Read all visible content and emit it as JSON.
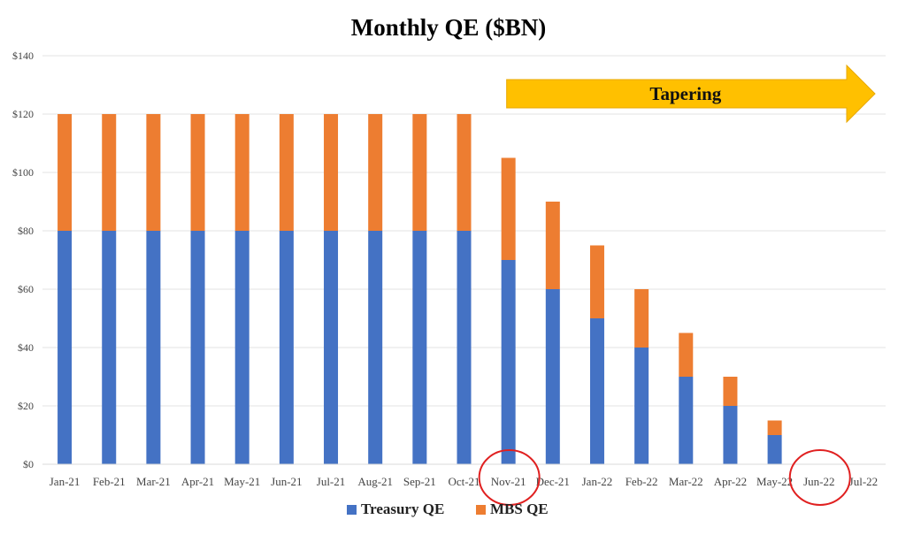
{
  "chart_data": {
    "type": "bar",
    "stacked": true,
    "title": "Monthly QE ($BN)",
    "categories": [
      "Jan-21",
      "Feb-21",
      "Mar-21",
      "Apr-21",
      "May-21",
      "Jun-21",
      "Jul-21",
      "Aug-21",
      "Sep-21",
      "Oct-21",
      "Nov-21",
      "Dec-21",
      "Jan-22",
      "Feb-22",
      "Mar-22",
      "Apr-22",
      "May-22",
      "Jun-22",
      "Jul-22"
    ],
    "series": [
      {
        "name": "Treasury QE",
        "color": "#4472C4",
        "values": [
          80,
          80,
          80,
          80,
          80,
          80,
          80,
          80,
          80,
          80,
          70,
          60,
          50,
          40,
          30,
          20,
          10,
          0,
          0
        ]
      },
      {
        "name": "MBS QE",
        "color": "#ED7D31",
        "values": [
          40,
          40,
          40,
          40,
          40,
          40,
          40,
          40,
          40,
          40,
          35,
          30,
          25,
          20,
          15,
          10,
          5,
          0,
          0
        ]
      }
    ],
    "ylim": [
      0,
      140
    ],
    "yticks": [
      0,
      20,
      40,
      60,
      80,
      100,
      120,
      140
    ],
    "ytick_labels": [
      "$0",
      "$20",
      "$40",
      "$60",
      "$80",
      "$100",
      "$120",
      "$140"
    ],
    "grid": true,
    "legend_position": "bottom",
    "annotations": {
      "arrow": {
        "label": "Tapering",
        "from_category": "Nov-21",
        "to_category": "Jul-22",
        "color": "#FFC000"
      },
      "circled_categories": [
        "Nov-21",
        "Jun-22"
      ],
      "circle_color": "#E02020"
    }
  }
}
